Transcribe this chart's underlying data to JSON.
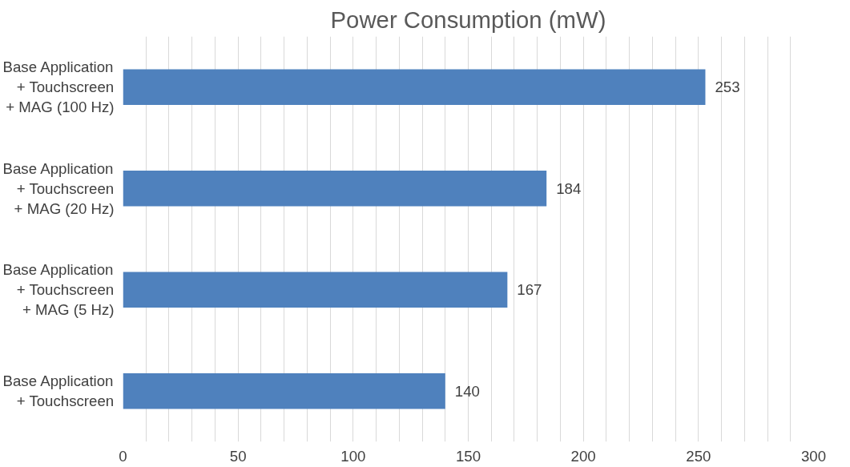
{
  "chart_data": {
    "type": "bar",
    "orientation": "horizontal",
    "title": "Power Consumption (mW)",
    "categories": [
      "Base Application\n+ Touchscreen\n+ MAG (100 Hz)",
      "Base Application\n+ Touchscreen\n+ MAG (20 Hz)",
      "Base Application\n+ Touchscreen\n+ MAG (5 Hz)",
      "Base Application\n+ Touchscreen"
    ],
    "values": [
      253,
      184,
      167,
      140
    ],
    "color": "#4f81bd",
    "data_labels": true,
    "grid": "x",
    "xlim": [
      0,
      300
    ],
    "xticks": [
      0,
      {
        "value": 10,
        "label": null
      },
      {
        "value": 20,
        "label": null
      },
      {
        "value": 30,
        "label": null
      },
      {
        "value": 40,
        "label": null
      },
      50,
      {
        "value": 60,
        "label": null
      },
      {
        "value": 70,
        "label": null
      },
      {
        "value": 80,
        "label": null
      },
      {
        "value": 90,
        "label": null
      },
      100,
      {
        "value": 110,
        "label": null
      },
      {
        "value": 120,
        "label": null
      },
      {
        "value": 130,
        "label": null
      },
      {
        "value": 140,
        "label": null
      },
      150,
      {
        "value": 160,
        "label": null
      },
      {
        "value": 170,
        "label": null
      },
      {
        "value": 180,
        "label": null
      },
      {
        "value": 190,
        "label": null
      },
      200,
      {
        "value": 210,
        "label": null
      },
      {
        "value": 220,
        "label": null
      },
      {
        "value": 230,
        "label": null
      },
      {
        "value": 240,
        "label": null
      },
      250,
      {
        "value": 260,
        "label": null
      },
      {
        "value": 270,
        "label": null
      },
      {
        "value": 280,
        "label": null
      },
      {
        "value": 290,
        "label": null
      },
      300
    ]
  }
}
